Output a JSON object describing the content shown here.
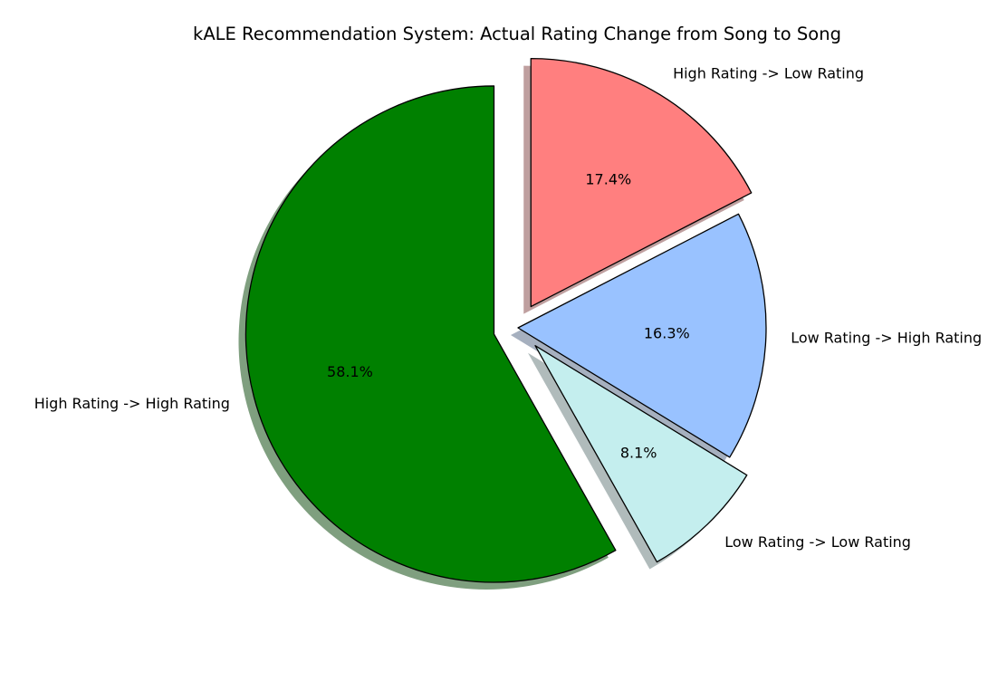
{
  "chart_data": {
    "type": "pie",
    "title": "kALE Recommendation System: Actual Rating Change from Song to Song",
    "slices": [
      {
        "label": "High Rating -> High Rating",
        "value": 58.1,
        "pct_label": "58.1%",
        "color": "#008000",
        "exploded": true
      },
      {
        "label": "Low Rating -> Low Rating",
        "value": 8.1,
        "pct_label": "8.1%",
        "color": "#c4eeee",
        "exploded": true
      },
      {
        "label": "Low Rating -> High Rating",
        "value": 16.3,
        "pct_label": "16.3%",
        "color": "#99c2ff",
        "exploded": false
      },
      {
        "label": "High Rating -> Low Rating",
        "value": 17.4,
        "pct_label": "17.4%",
        "color": "#ff7f7f",
        "exploded": true
      }
    ],
    "shadow": true,
    "legend": "none"
  }
}
